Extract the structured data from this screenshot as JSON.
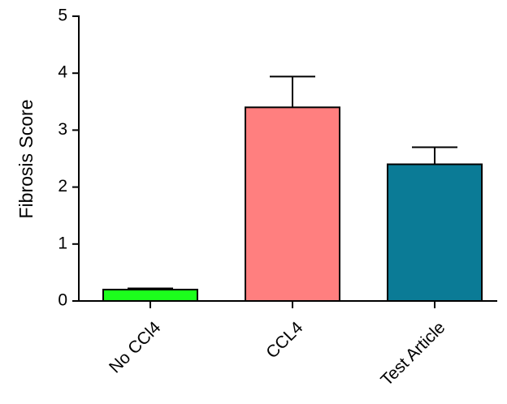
{
  "chart_data": {
    "type": "bar",
    "y_label": "Fibrosis Score",
    "categories": [
      "No CCl4",
      "CCL4",
      "Test Article"
    ],
    "values": [
      0.2,
      3.4,
      2.4
    ],
    "errors": [
      0.02,
      0.54,
      0.3
    ],
    "colors": [
      "#1cff1c",
      "#ff7f7f",
      "#0b7b96"
    ],
    "ylim": [
      0,
      5
    ],
    "yticks": [
      0,
      1,
      2,
      3,
      4,
      5
    ],
    "grid": false
  }
}
